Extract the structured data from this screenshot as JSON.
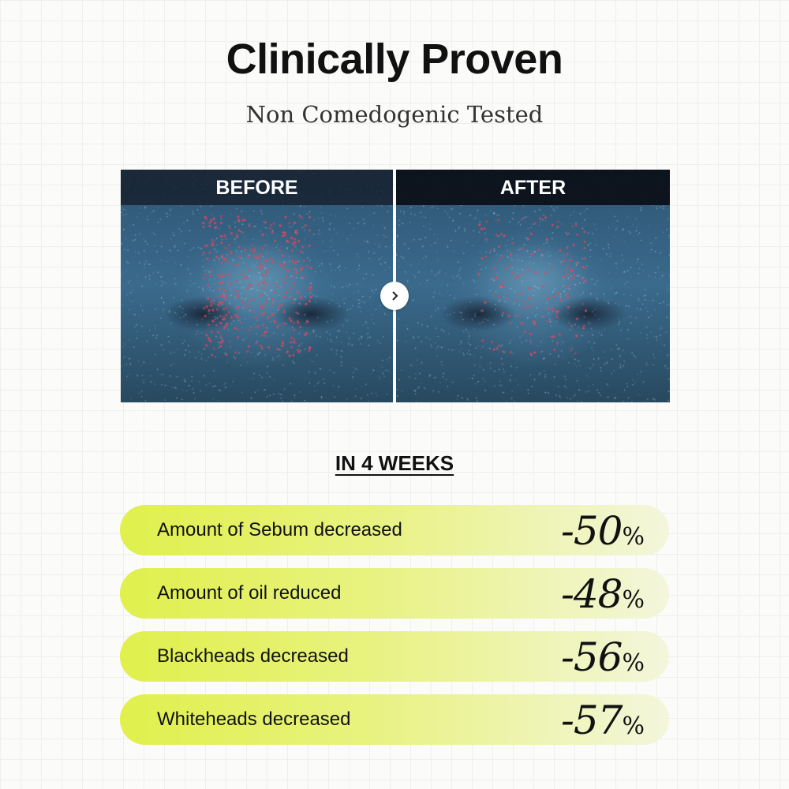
{
  "header": {
    "title": "Clinically Proven",
    "subtitle": "Non Comedogenic Tested"
  },
  "comparison": {
    "before_label": "BEFORE",
    "after_label": "AFTER",
    "arrow_icon": "chevron-right-icon"
  },
  "results": {
    "period": "IN 4 WEEKS",
    "items": [
      {
        "label": "Amount of Sebum decreased",
        "value": "-50",
        "unit": "%"
      },
      {
        "label": "Amount of oil reduced",
        "value": "-48",
        "unit": "%"
      },
      {
        "label": "Blackheads decreased",
        "value": "-56",
        "unit": "%"
      },
      {
        "label": "Whiteheads decreased",
        "value": "-57",
        "unit": "%"
      }
    ],
    "colors": {
      "pill_start": "#e0f04c",
      "pill_end": "#f3f6dc"
    }
  }
}
